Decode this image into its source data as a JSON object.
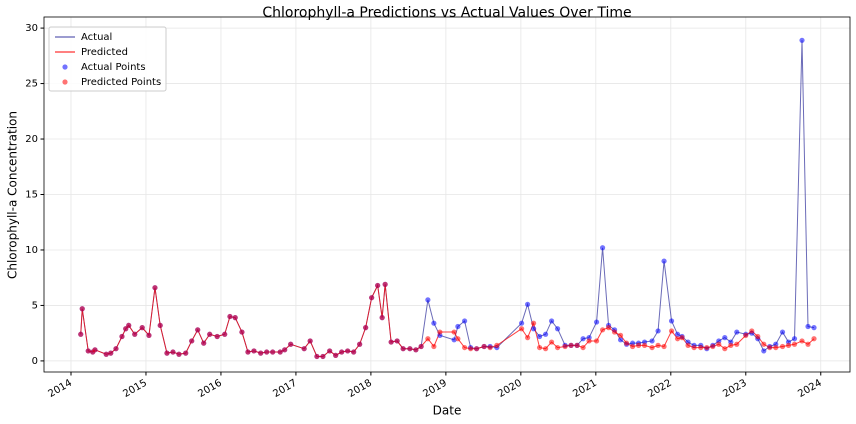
{
  "chart_data": {
    "type": "line",
    "title": "Chlorophyll-a Predictions vs Actual Values Over Time",
    "xlabel": "Date",
    "ylabel": "Chlorophyll-a Concentration",
    "x": [
      2014.13,
      2014.15,
      2014.23,
      2014.29,
      2014.32,
      2014.47,
      2014.53,
      2014.6,
      2014.68,
      2014.73,
      2014.77,
      2014.85,
      2014.95,
      2015.04,
      2015.12,
      2015.19,
      2015.28,
      2015.36,
      2015.44,
      2015.53,
      2015.61,
      2015.69,
      2015.77,
      2015.85,
      2015.95,
      2016.05,
      2016.12,
      2016.19,
      2016.28,
      2016.36,
      2016.44,
      2016.53,
      2016.61,
      2016.69,
      2016.79,
      2016.85,
      2016.93,
      2017.11,
      2017.19,
      2017.28,
      2017.36,
      2017.45,
      2017.53,
      2017.61,
      2017.69,
      2017.77,
      2017.85,
      2017.93,
      2018.01,
      2018.09,
      2018.15,
      2018.19,
      2018.27,
      2018.35,
      2018.43,
      2018.52,
      2018.6,
      2018.67,
      2018.76,
      2018.84,
      2018.92,
      2019.11,
      2019.16,
      2019.25,
      2019.33,
      2019.41,
      2019.51,
      2019.59,
      2019.68,
      2020.01,
      2020.09,
      2020.17,
      2020.25,
      2020.33,
      2020.41,
      2020.49,
      2020.59,
      2020.67,
      2020.75,
      2020.83,
      2020.91,
      2021.01,
      2021.09,
      2021.17,
      2021.25,
      2021.33,
      2021.41,
      2021.49,
      2021.57,
      2021.65,
      2021.75,
      2021.83,
      2021.91,
      2022.01,
      2022.09,
      2022.15,
      2022.23,
      2022.31,
      2022.4,
      2022.48,
      2022.56,
      2022.64,
      2022.72,
      2022.8,
      2022.88,
      2023.0,
      2023.08,
      2023.16,
      2023.24,
      2023.32,
      2023.4,
      2023.49,
      2023.57,
      2023.65,
      2023.75,
      2023.83,
      2023.91
    ],
    "series": [
      {
        "name": "Actual",
        "points_name": "Actual Points",
        "line_color": "#3a3aa0",
        "color": "#0000ff",
        "values": [
          2.4,
          4.7,
          0.9,
          0.8,
          1.0,
          0.6,
          0.7,
          1.1,
          2.2,
          2.9,
          3.2,
          2.4,
          3.0,
          2.3,
          6.6,
          3.2,
          0.7,
          0.8,
          0.6,
          0.7,
          1.8,
          2.8,
          1.6,
          2.4,
          2.2,
          2.4,
          4.0,
          3.9,
          2.6,
          0.8,
          0.9,
          0.7,
          0.8,
          0.8,
          0.8,
          1.0,
          1.5,
          1.1,
          1.8,
          0.4,
          0.4,
          0.9,
          0.5,
          0.8,
          0.9,
          0.8,
          1.5,
          3.0,
          5.7,
          6.8,
          3.9,
          6.9,
          1.7,
          1.8,
          1.1,
          1.1,
          1.0,
          1.3,
          5.5,
          3.4,
          2.3,
          1.9,
          3.1,
          3.6,
          1.2,
          1.1,
          1.3,
          1.3,
          1.2,
          3.4,
          5.1,
          2.9,
          2.2,
          2.4,
          3.6,
          2.9,
          1.4,
          1.4,
          1.4,
          2.0,
          2.1,
          3.5,
          10.2,
          3.2,
          2.8,
          1.9,
          1.5,
          1.6,
          1.6,
          1.7,
          1.8,
          2.7,
          9.0,
          3.6,
          2.4,
          2.2,
          1.7,
          1.4,
          1.4,
          1.1,
          1.4,
          1.8,
          2.1,
          1.7,
          2.6,
          2.4,
          2.5,
          2.0,
          0.9,
          1.3,
          1.5,
          2.6,
          1.7,
          2.0,
          28.9,
          3.1,
          3.0
        ]
      },
      {
        "name": "Predicted",
        "points_name": "Predicted Points",
        "line_color": "#ff0000",
        "color": "#ff0000",
        "values": [
          2.4,
          4.7,
          0.9,
          0.8,
          1.0,
          0.6,
          0.7,
          1.1,
          2.2,
          2.9,
          3.2,
          2.4,
          3.0,
          2.3,
          6.6,
          3.2,
          0.7,
          0.8,
          0.6,
          0.7,
          1.8,
          2.8,
          1.6,
          2.4,
          2.2,
          2.4,
          4.0,
          3.9,
          2.6,
          0.8,
          0.9,
          0.7,
          0.8,
          0.8,
          0.8,
          1.0,
          1.5,
          1.1,
          1.8,
          0.4,
          0.4,
          0.9,
          0.5,
          0.8,
          0.9,
          0.8,
          1.5,
          3.0,
          5.7,
          6.8,
          3.9,
          6.9,
          1.7,
          1.8,
          1.1,
          1.1,
          1.0,
          1.3,
          2.0,
          1.3,
          2.6,
          2.6,
          2.0,
          1.2,
          1.1,
          1.1,
          1.3,
          1.2,
          1.4,
          2.9,
          2.1,
          3.4,
          1.2,
          1.1,
          1.7,
          1.2,
          1.3,
          1.4,
          1.4,
          1.2,
          1.8,
          1.8,
          2.8,
          3.0,
          2.6,
          2.3,
          1.6,
          1.3,
          1.4,
          1.4,
          1.2,
          1.4,
          1.3,
          2.7,
          2.0,
          2.1,
          1.4,
          1.2,
          1.2,
          1.2,
          1.3,
          1.5,
          1.1,
          1.4,
          1.5,
          2.3,
          2.7,
          2.2,
          1.5,
          1.2,
          1.2,
          1.3,
          1.4,
          1.5,
          1.8,
          1.5,
          2.0
        ]
      }
    ],
    "xlim": [
      2013.64,
      2024.39
    ],
    "xticks": [
      2014,
      2015,
      2016,
      2017,
      2018,
      2019,
      2020,
      2021,
      2022,
      2023,
      2024
    ],
    "ylim": [
      -1,
      31
    ],
    "yticks": [
      0,
      5,
      10,
      15,
      20,
      25,
      30
    ],
    "grid": true,
    "legend": "upper left"
  }
}
